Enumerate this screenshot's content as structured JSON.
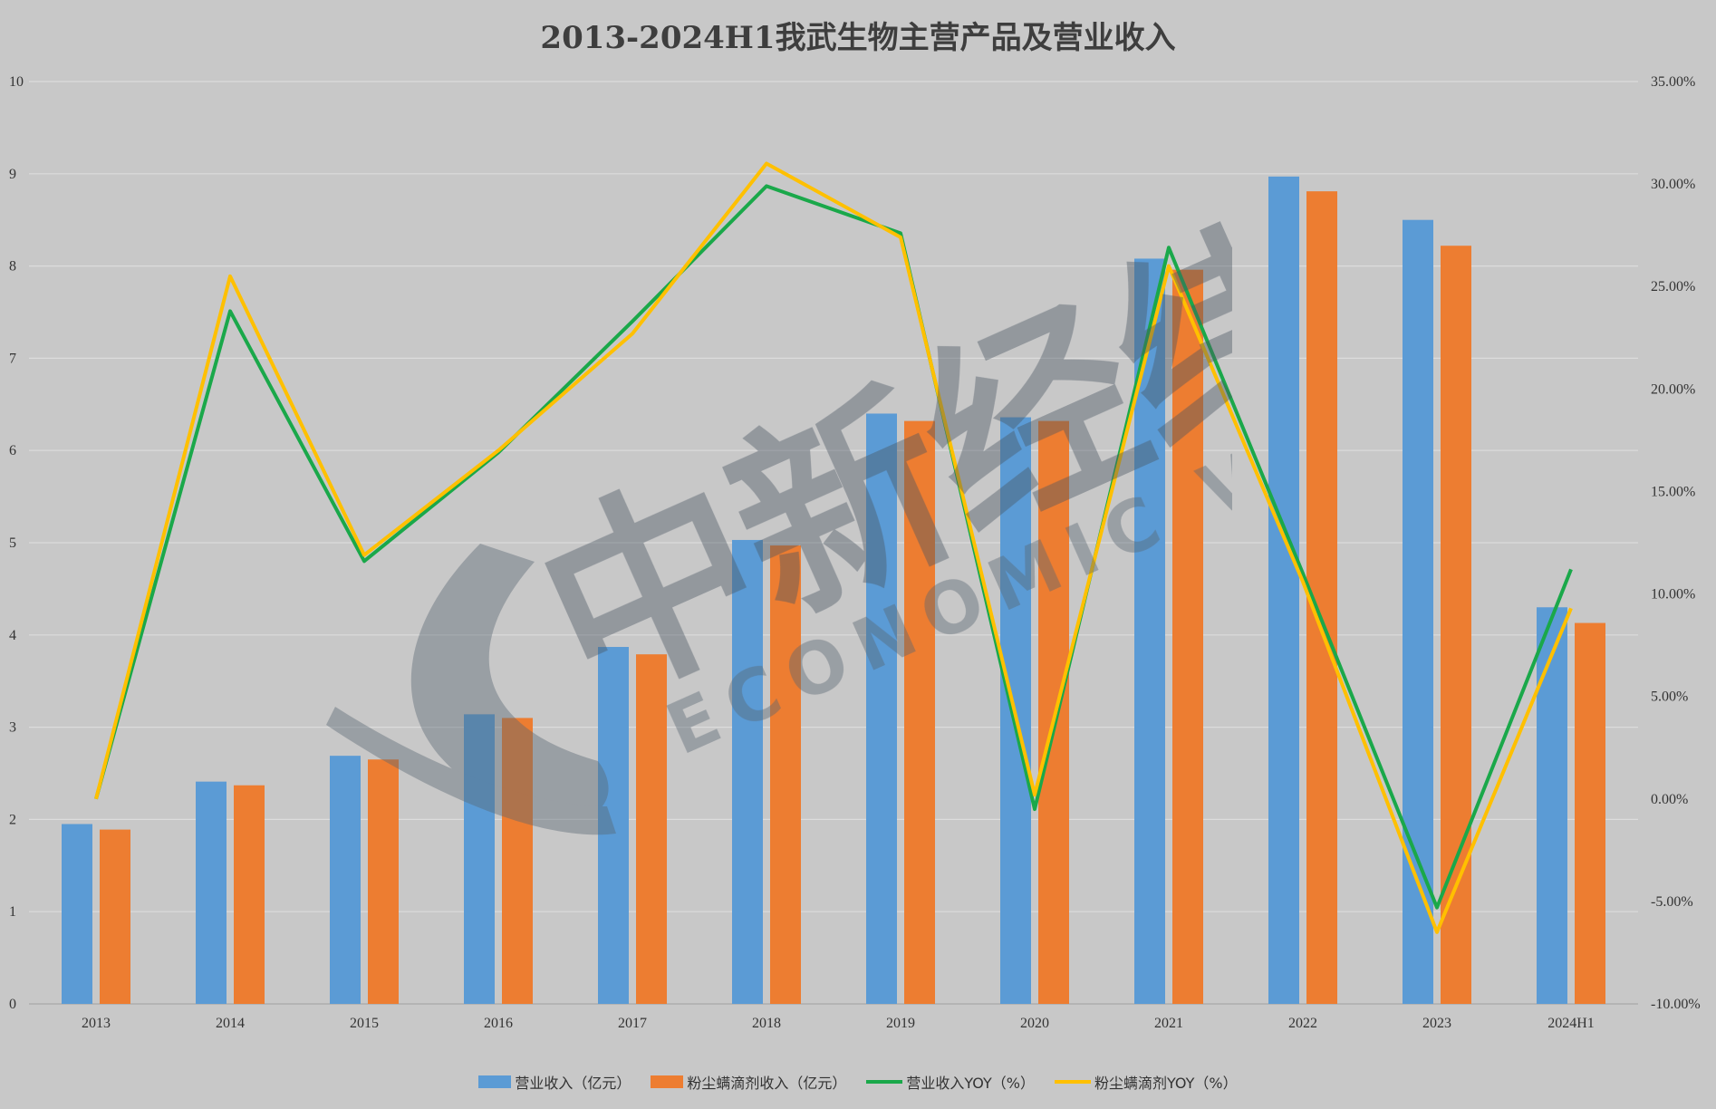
{
  "chart_data": {
    "type": "bar+line",
    "title": "2013-2024H1我武生物主营产品及营业收入",
    "categories": [
      "2013",
      "2014",
      "2015",
      "2016",
      "2017",
      "2018",
      "2019",
      "2020",
      "2021",
      "2022",
      "2023",
      "2024H1"
    ],
    "series": [
      {
        "name": "营业收入（亿元）",
        "type": "bar",
        "axis": "left",
        "color": "#5b9bd5",
        "values": [
          1.95,
          2.41,
          2.69,
          3.14,
          3.87,
          5.03,
          6.4,
          6.36,
          8.08,
          8.97,
          8.5,
          4.3
        ]
      },
      {
        "name": "粉尘螨滴剂收入（亿元）",
        "type": "bar",
        "axis": "left",
        "color": "#ed7d31",
        "values": [
          1.89,
          2.37,
          2.65,
          3.1,
          3.79,
          4.97,
          6.32,
          6.32,
          7.96,
          8.81,
          8.22,
          4.13
        ]
      },
      {
        "name": "营业收入YOY（%）",
        "type": "line",
        "axis": "right",
        "color": "#1aa84a",
        "values": [
          0.0,
          23.8,
          11.6,
          16.9,
          23.3,
          29.9,
          27.6,
          -0.5,
          26.9,
          11.0,
          -5.3,
          11.2
        ]
      },
      {
        "name": "粉尘螨滴剂YOY（%）",
        "type": "line",
        "axis": "right",
        "color": "#ffc000",
        "values": [
          0.0,
          25.5,
          11.9,
          17.0,
          22.7,
          31.0,
          27.4,
          0.2,
          26.0,
          10.6,
          -6.5,
          9.3
        ]
      }
    ],
    "y_left": {
      "min": 0,
      "max": 10,
      "ticks": [
        "0",
        "1",
        "2",
        "3",
        "4",
        "5",
        "6",
        "7",
        "8",
        "9",
        "10"
      ]
    },
    "y_right": {
      "min": -10,
      "max": 35,
      "ticks": [
        "-10.00%",
        "-5.00%",
        "0.00%",
        "5.00%",
        "10.00%",
        "15.00%",
        "20.00%",
        "25.00%",
        "30.00%",
        "35.00%"
      ]
    },
    "grid": true,
    "legend_position": "bottom"
  },
  "watermark": {
    "brand": "中新经纬",
    "tagline": "ECONOMIC VIEW"
  }
}
